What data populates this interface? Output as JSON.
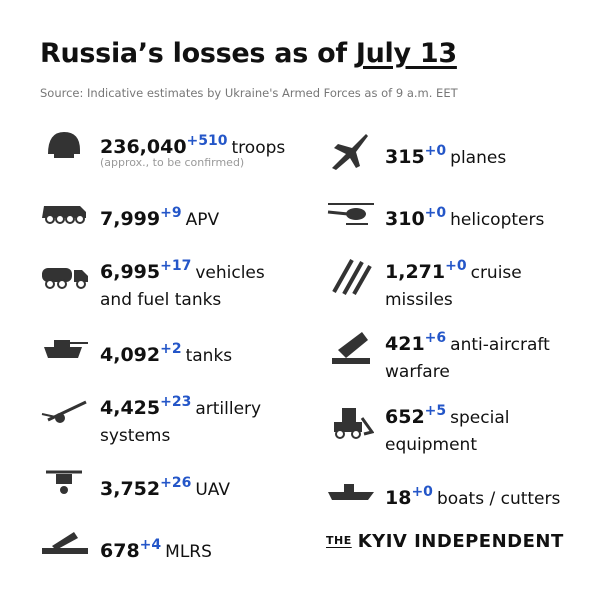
{
  "header": {
    "title_prefix": "Russia’s losses as of",
    "title_date": "July 13",
    "source": "Source: Indicative estimates by Ukraine's Armed Forces as of 9 a.m. EET"
  },
  "left": [
    {
      "value": "236,040",
      "delta": "+510",
      "label": [
        "troops"
      ],
      "note": "(approx., to be confirmed)"
    },
    {
      "value": "7,999",
      "delta": "+9",
      "label": [
        "APV"
      ]
    },
    {
      "value": "6,995",
      "delta": "+17",
      "label": [
        "vehicles",
        "and fuel tanks"
      ]
    },
    {
      "value": "4,092",
      "delta": "+2",
      "label": [
        "tanks"
      ]
    },
    {
      "value": "4,425",
      "delta": "+23",
      "label": [
        "artillery",
        "systems"
      ]
    },
    {
      "value": "3,752",
      "delta": "+26",
      "label": [
        "UAV"
      ]
    },
    {
      "value": "678",
      "delta": "+4",
      "label": [
        "MLRS"
      ]
    }
  ],
  "right": [
    {
      "value": "315",
      "delta": "+0",
      "label": [
        "planes"
      ]
    },
    {
      "value": "310",
      "delta": "+0",
      "label": [
        "helicopters"
      ]
    },
    {
      "value": "1,271",
      "delta": "+0",
      "label": [
        "cruise",
        "missiles"
      ]
    },
    {
      "value": "421",
      "delta": "+6",
      "label": [
        "anti-aircraft",
        "warfare"
      ]
    },
    {
      "value": "652",
      "delta": "+5",
      "label": [
        "special",
        "equipment"
      ]
    },
    {
      "value": "18",
      "delta": "+0",
      "label": [
        "boats / cutters"
      ]
    }
  ],
  "brand": {
    "small": "THE",
    "name": "KYIV INDEPENDENT"
  }
}
